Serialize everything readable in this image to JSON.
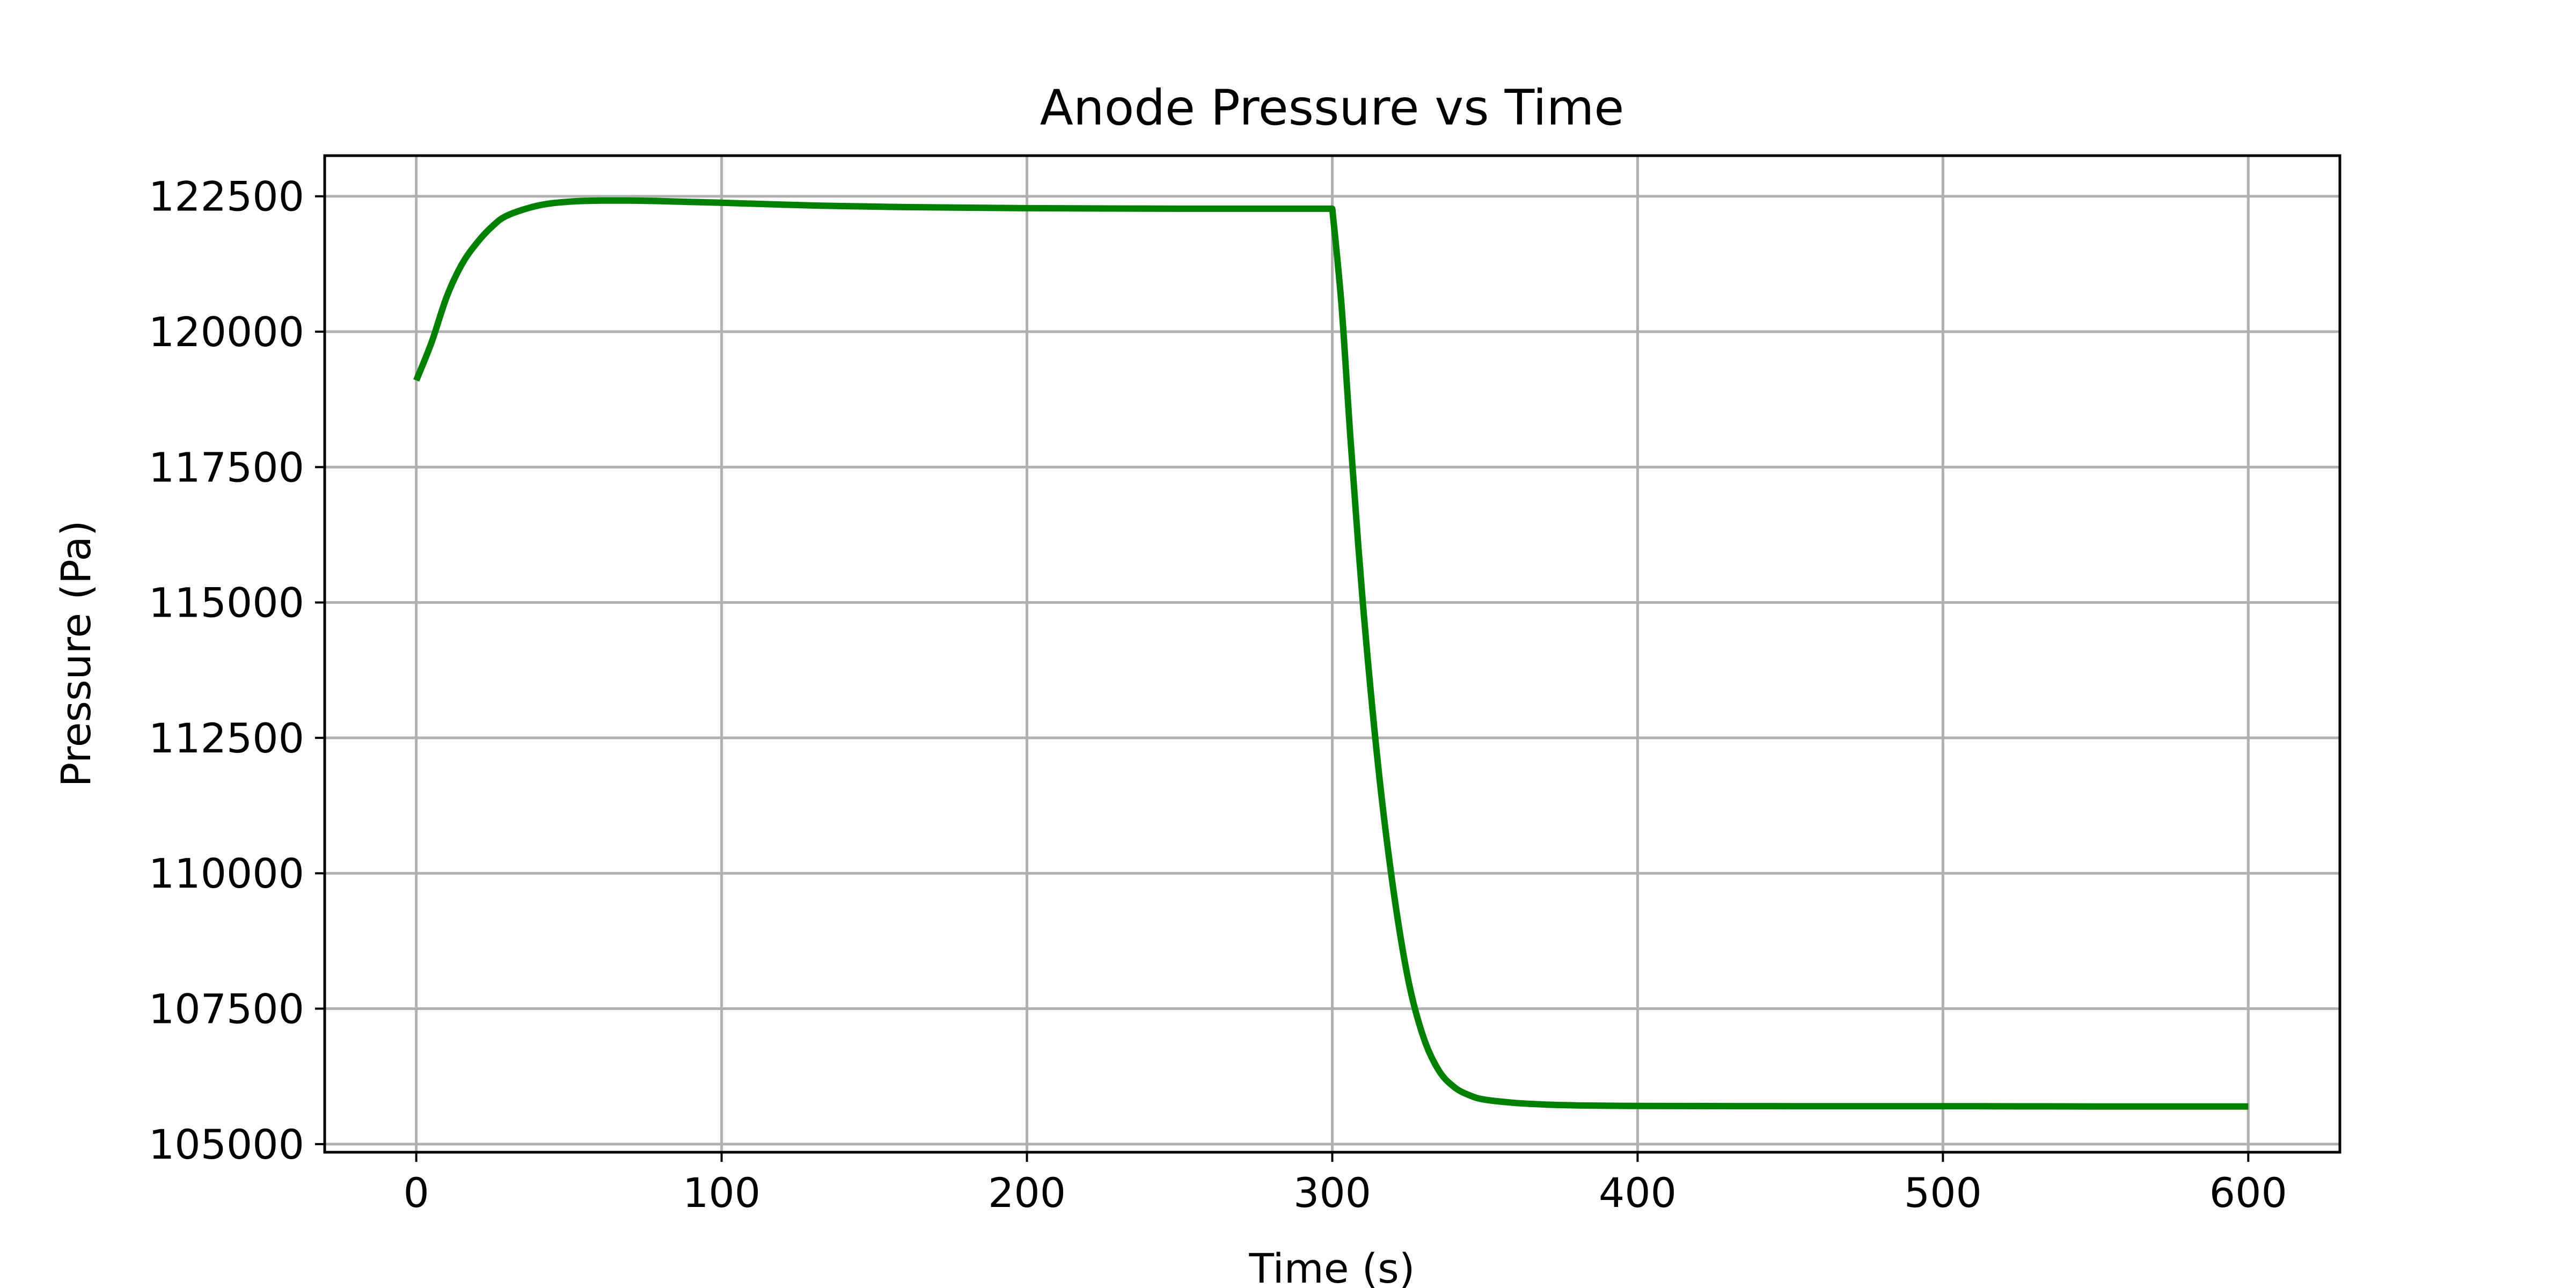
{
  "chart_data": {
    "type": "line",
    "title": "Anode Pressure vs Time",
    "xlabel": "Time (s)",
    "ylabel": "Pressure (Pa)",
    "xlim": [
      -30,
      630
    ],
    "ylim": [
      104850,
      123250
    ],
    "xticks": [
      0,
      100,
      200,
      300,
      400,
      500,
      600
    ],
    "xtick_labels": [
      "0",
      "100",
      "200",
      "300",
      "400",
      "500",
      "600"
    ],
    "yticks": [
      105000,
      107500,
      110000,
      112500,
      115000,
      117500,
      120000,
      122500
    ],
    "ytick_labels": [
      "105000",
      "107500",
      "110000",
      "112500",
      "115000",
      "117500",
      "120000",
      "122500"
    ],
    "grid": true,
    "series": [
      {
        "color": "#008000",
        "x": [
          0,
          5,
          10,
          15,
          20,
          25,
          30,
          40,
          50,
          60,
          70,
          80,
          100,
          130,
          160,
          200,
          250,
          299.9,
          300,
          303,
          306,
          310,
          315,
          320,
          325,
          330,
          335,
          340,
          345,
          350,
          360,
          370,
          380,
          400,
          450,
          500,
          550,
          600
        ],
        "y": [
          119100,
          119800,
          120650,
          121250,
          121650,
          121950,
          122150,
          122330,
          122400,
          122420,
          122420,
          122410,
          122380,
          122330,
          122300,
          122280,
          122270,
          122270,
          122270,
          120500,
          118000,
          115000,
          112000,
          109700,
          108000,
          106950,
          106350,
          106050,
          105900,
          105820,
          105760,
          105730,
          105715,
          105705,
          105700,
          105700,
          105695,
          105695
        ]
      }
    ]
  }
}
